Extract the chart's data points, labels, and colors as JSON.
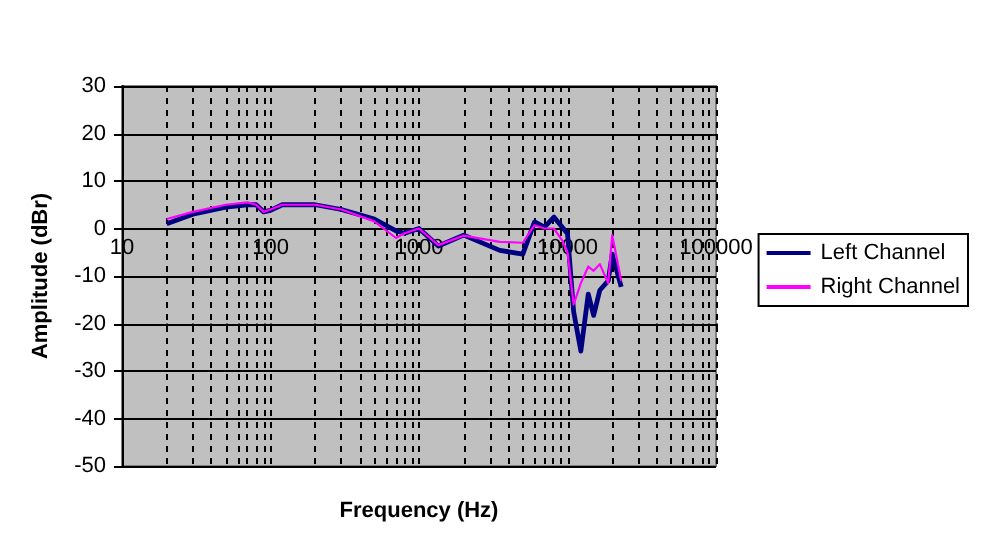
{
  "chart_data": {
    "type": "line",
    "xlabel": "Frequency (Hz)",
    "ylabel": "Amplitude (dBr)",
    "log": "x",
    "grid": true,
    "legend": "right",
    "marker": "none",
    "line_style": "solid",
    "xlim": [
      10,
      100000
    ],
    "ylim": [
      -50,
      30
    ],
    "yticks": [
      -50,
      -40,
      -30,
      -20,
      -10,
      0,
      10,
      20,
      30
    ],
    "xticks": [
      10,
      {
        "value": 20,
        "label": null
      },
      {
        "value": 30,
        "label": null
      },
      {
        "value": 40,
        "label": null
      },
      {
        "value": 50,
        "label": null
      },
      {
        "value": 60,
        "label": null
      },
      {
        "value": 70,
        "label": null
      },
      {
        "value": 80,
        "label": null
      },
      {
        "value": 90,
        "label": null
      },
      100,
      {
        "value": 200,
        "label": null
      },
      {
        "value": 300,
        "label": null
      },
      {
        "value": 400,
        "label": null
      },
      {
        "value": 500,
        "label": null
      },
      {
        "value": 600,
        "label": null
      },
      {
        "value": 700,
        "label": null
      },
      {
        "value": 800,
        "label": null
      },
      {
        "value": 900,
        "label": null
      },
      1000,
      {
        "value": 2000,
        "label": null
      },
      {
        "value": 3000,
        "label": null
      },
      {
        "value": 4000,
        "label": null
      },
      {
        "value": 5000,
        "label": null
      },
      {
        "value": 6000,
        "label": null
      },
      {
        "value": 7000,
        "label": null
      },
      {
        "value": 8000,
        "label": null
      },
      {
        "value": 9000,
        "label": null
      },
      10000,
      {
        "value": 20000,
        "label": null
      },
      {
        "value": 30000,
        "label": null
      },
      {
        "value": 40000,
        "label": null
      },
      {
        "value": 50000,
        "label": null
      },
      {
        "value": 60000,
        "label": null
      },
      {
        "value": 70000,
        "label": null
      },
      {
        "value": 80000,
        "label": null
      },
      {
        "value": 90000,
        "label": null
      },
      100000
    ],
    "x": [
      20,
      30,
      50,
      70,
      80,
      90,
      100,
      120,
      200,
      300,
      500,
      700,
      800,
      1000,
      1350,
      2000,
      3500,
      5000,
      6000,
      7000,
      8100,
      9200,
      10000,
      11000,
      12300,
      13800,
      15000,
      16500,
      18800,
      20000,
      23000
    ],
    "series": [
      {
        "name": "Left Channel",
        "color": "#000080",
        "values": [
          1,
          3,
          4.5,
          5,
          5,
          3.5,
          3.8,
          5,
          5,
          4,
          2,
          -0.5,
          -1,
          0,
          -3.7,
          -1.4,
          -4.6,
          -5.4,
          1.4,
          0.3,
          2.4,
          0.3,
          -1.1,
          -17.5,
          -25.8,
          -13.8,
          -18.3,
          -13,
          -11,
          -5.4,
          -12.3
        ]
      },
      {
        "name": "Right Channel",
        "color": "#ff00ff",
        "values": [
          2,
          3.5,
          5,
          5.5,
          5,
          3.5,
          4,
          5,
          5,
          4,
          1.5,
          -2,
          -1,
          0,
          -3.5,
          -1.5,
          -2.8,
          -3,
          0.7,
          0,
          0,
          -2.5,
          -5,
          -16,
          -11.5,
          -8,
          -8.9,
          -7.5,
          -11.5,
          -1.4,
          -11
        ]
      }
    ]
  }
}
